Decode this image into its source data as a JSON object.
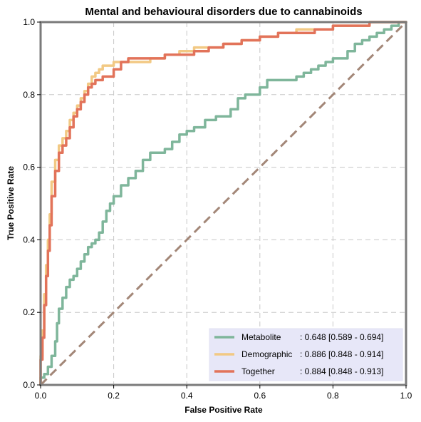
{
  "chart_data": {
    "type": "line",
    "title": "Mental and behavioural disorders due to cannabinoids",
    "xlabel": "False Positive Rate",
    "ylabel": "True Positive Rate",
    "xlim": [
      0,
      1
    ],
    "ylim": [
      0,
      1
    ],
    "xticks": [
      "0.0",
      "0.2",
      "0.4",
      "0.6",
      "0.8",
      "1.0"
    ],
    "yticks": [
      "0.0",
      "0.2",
      "0.4",
      "0.6",
      "0.8",
      "1.0"
    ],
    "grid": true,
    "legend_position": "bottom-right",
    "diagonal_color": "#a38778",
    "series": [
      {
        "name": "Metabolite",
        "auc_label": ": 0.648 [0.589 - 0.694]",
        "color": "#7fb69b",
        "x": [
          0.0,
          0.01,
          0.02,
          0.03,
          0.04,
          0.045,
          0.05,
          0.06,
          0.07,
          0.08,
          0.09,
          0.1,
          0.11,
          0.12,
          0.13,
          0.14,
          0.15,
          0.16,
          0.17,
          0.18,
          0.19,
          0.2,
          0.22,
          0.24,
          0.26,
          0.28,
          0.3,
          0.32,
          0.34,
          0.36,
          0.38,
          0.4,
          0.42,
          0.45,
          0.48,
          0.5,
          0.52,
          0.54,
          0.56,
          0.6,
          0.62,
          0.64,
          0.66,
          0.68,
          0.7,
          0.72,
          0.74,
          0.76,
          0.78,
          0.8,
          0.82,
          0.84,
          0.86,
          0.88,
          0.9,
          0.92,
          0.94,
          0.96,
          0.98,
          1.0
        ],
        "y": [
          0.0,
          0.02,
          0.03,
          0.05,
          0.08,
          0.12,
          0.17,
          0.21,
          0.24,
          0.27,
          0.29,
          0.3,
          0.32,
          0.34,
          0.36,
          0.38,
          0.39,
          0.4,
          0.42,
          0.45,
          0.48,
          0.5,
          0.52,
          0.55,
          0.57,
          0.59,
          0.62,
          0.64,
          0.64,
          0.65,
          0.67,
          0.69,
          0.7,
          0.71,
          0.73,
          0.74,
          0.74,
          0.76,
          0.79,
          0.8,
          0.82,
          0.84,
          0.84,
          0.84,
          0.84,
          0.85,
          0.86,
          0.87,
          0.88,
          0.89,
          0.9,
          0.9,
          0.92,
          0.94,
          0.95,
          0.96,
          0.97,
          0.98,
          0.99,
          1.0
        ]
      },
      {
        "name": "Demographic",
        "auc_label": ": 0.886 [0.848 - 0.914]",
        "color": "#f2c984",
        "x": [
          0.0,
          0.005,
          0.01,
          0.015,
          0.02,
          0.025,
          0.03,
          0.04,
          0.05,
          0.06,
          0.07,
          0.08,
          0.09,
          0.1,
          0.11,
          0.12,
          0.13,
          0.14,
          0.15,
          0.16,
          0.17,
          0.18,
          0.2,
          0.22,
          0.24,
          0.26,
          0.28,
          0.3,
          0.34,
          0.38,
          0.42,
          0.46,
          0.5,
          0.55,
          0.6,
          0.65,
          0.7,
          0.75,
          0.8,
          0.85,
          0.9,
          0.95,
          1.0
        ],
        "y": [
          0.0,
          0.08,
          0.15,
          0.25,
          0.33,
          0.4,
          0.47,
          0.56,
          0.62,
          0.66,
          0.68,
          0.7,
          0.73,
          0.75,
          0.77,
          0.79,
          0.81,
          0.83,
          0.85,
          0.86,
          0.87,
          0.88,
          0.88,
          0.89,
          0.89,
          0.89,
          0.89,
          0.89,
          0.9,
          0.91,
          0.92,
          0.93,
          0.93,
          0.94,
          0.95,
          0.96,
          0.97,
          0.98,
          0.98,
          0.99,
          0.99,
          1.0,
          1.0
        ]
      },
      {
        "name": "Together",
        "auc_label": ": 0.884 [0.848 - 0.913]",
        "color": "#e2735a",
        "x": [
          0.0,
          0.005,
          0.01,
          0.015,
          0.02,
          0.025,
          0.03,
          0.04,
          0.05,
          0.06,
          0.07,
          0.08,
          0.09,
          0.1,
          0.11,
          0.12,
          0.13,
          0.14,
          0.15,
          0.16,
          0.17,
          0.18,
          0.2,
          0.22,
          0.24,
          0.26,
          0.28,
          0.3,
          0.34,
          0.38,
          0.42,
          0.46,
          0.5,
          0.55,
          0.6,
          0.65,
          0.7,
          0.75,
          0.8,
          0.85,
          0.9,
          0.95,
          1.0
        ],
        "y": [
          0.0,
          0.07,
          0.13,
          0.22,
          0.3,
          0.37,
          0.44,
          0.52,
          0.59,
          0.64,
          0.66,
          0.68,
          0.71,
          0.74,
          0.76,
          0.78,
          0.8,
          0.82,
          0.83,
          0.84,
          0.84,
          0.85,
          0.85,
          0.87,
          0.89,
          0.9,
          0.9,
          0.9,
          0.9,
          0.91,
          0.91,
          0.92,
          0.93,
          0.94,
          0.95,
          0.96,
          0.97,
          0.97,
          0.98,
          0.99,
          0.99,
          1.0,
          1.0
        ]
      }
    ]
  }
}
